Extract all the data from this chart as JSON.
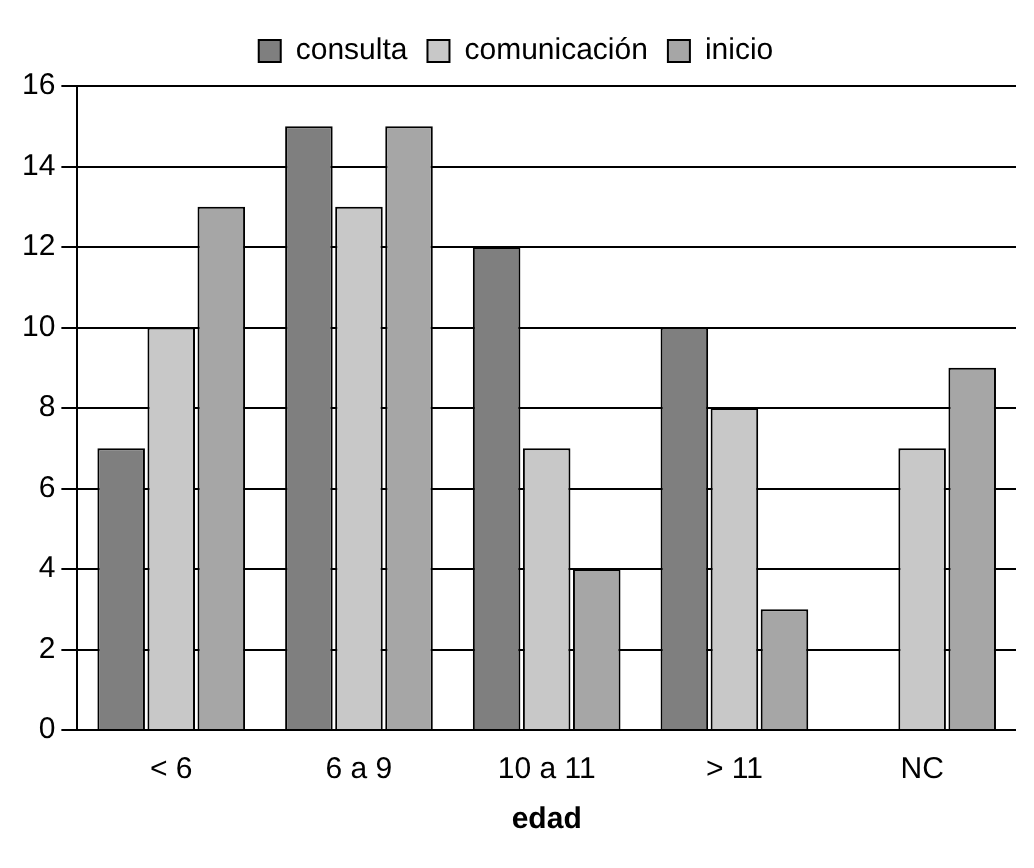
{
  "chart_data": {
    "type": "bar",
    "xlabel": "edad",
    "categories": [
      "< 6",
      "6 a 9",
      "10 a 11",
      "> 11",
      "NC"
    ],
    "series": [
      {
        "name": "consulta",
        "color": "#7f7f7f",
        "values": [
          7,
          15,
          12,
          10,
          null
        ]
      },
      {
        "name": "comunicación",
        "color": "#c8c8c8",
        "values": [
          10,
          13,
          7,
          8,
          7
        ]
      },
      {
        "name": "inicio",
        "color": "#a6a6a6",
        "values": [
          13,
          15,
          4,
          3,
          9
        ]
      }
    ],
    "ylim": [
      0,
      16
    ],
    "yticks": [
      0,
      2,
      4,
      6,
      8,
      10,
      12,
      14,
      16
    ],
    "grid": "y",
    "legend": "top"
  }
}
